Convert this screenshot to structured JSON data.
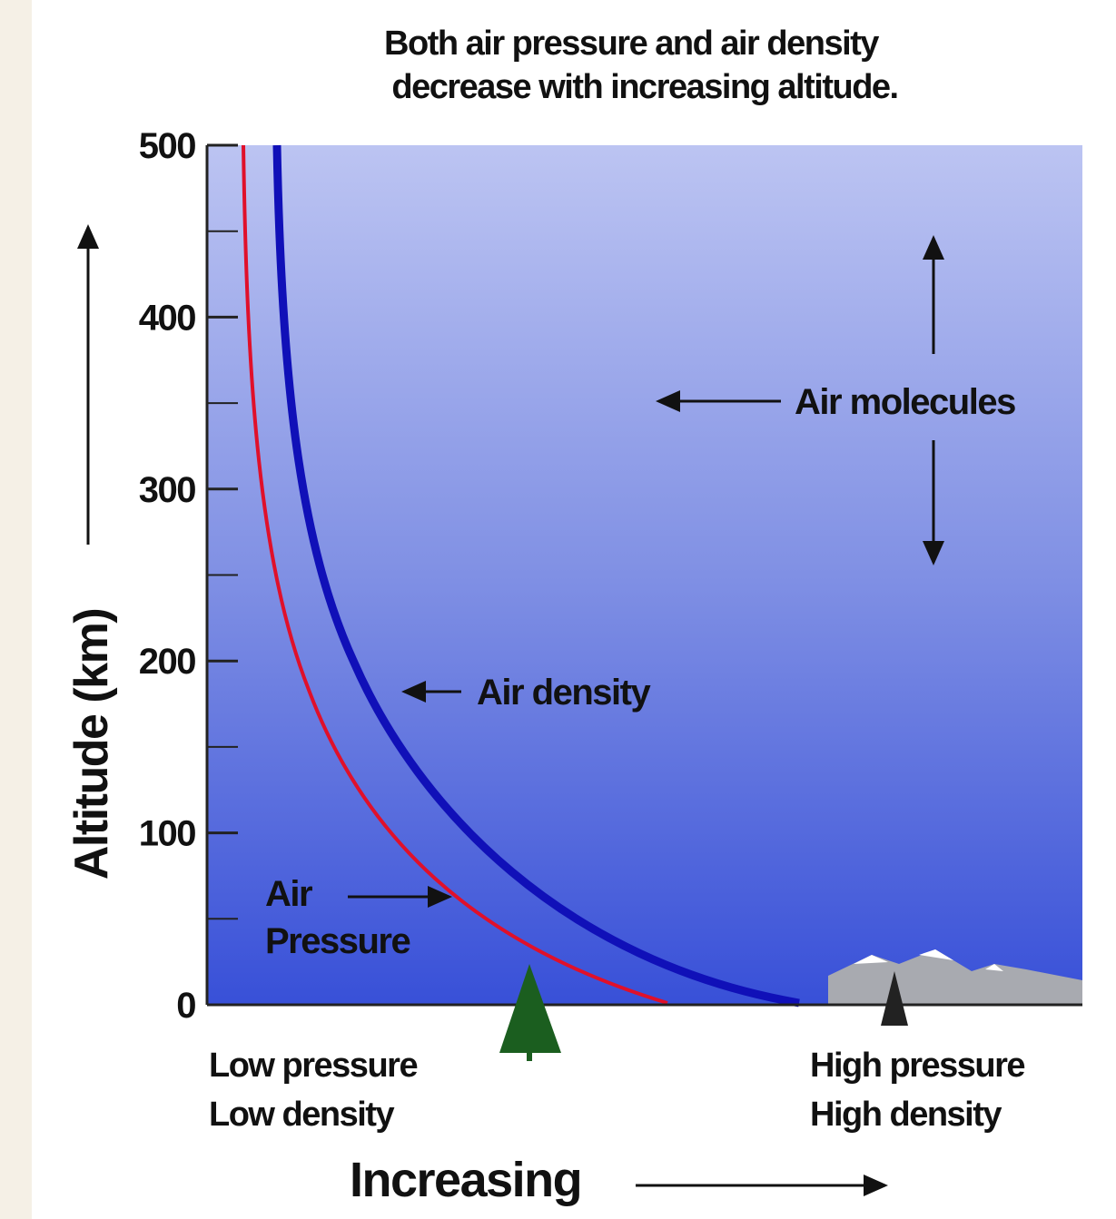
{
  "header": {
    "title_lines": [
      "Both air pressure and air density",
      "decrease with increasing altitude."
    ]
  },
  "axis": {
    "label": "Altitude (km)",
    "ticks": [
      0,
      100,
      200,
      300,
      400,
      500
    ]
  },
  "labels": {
    "air_molecules": "Air molecules",
    "air_density": "Air density",
    "air_pressure": [
      "Air",
      "Pressure"
    ],
    "low": [
      "Low pressure",
      "Low density"
    ],
    "high": [
      "High pressure",
      "High density"
    ],
    "increasing": "Increasing"
  }
}
